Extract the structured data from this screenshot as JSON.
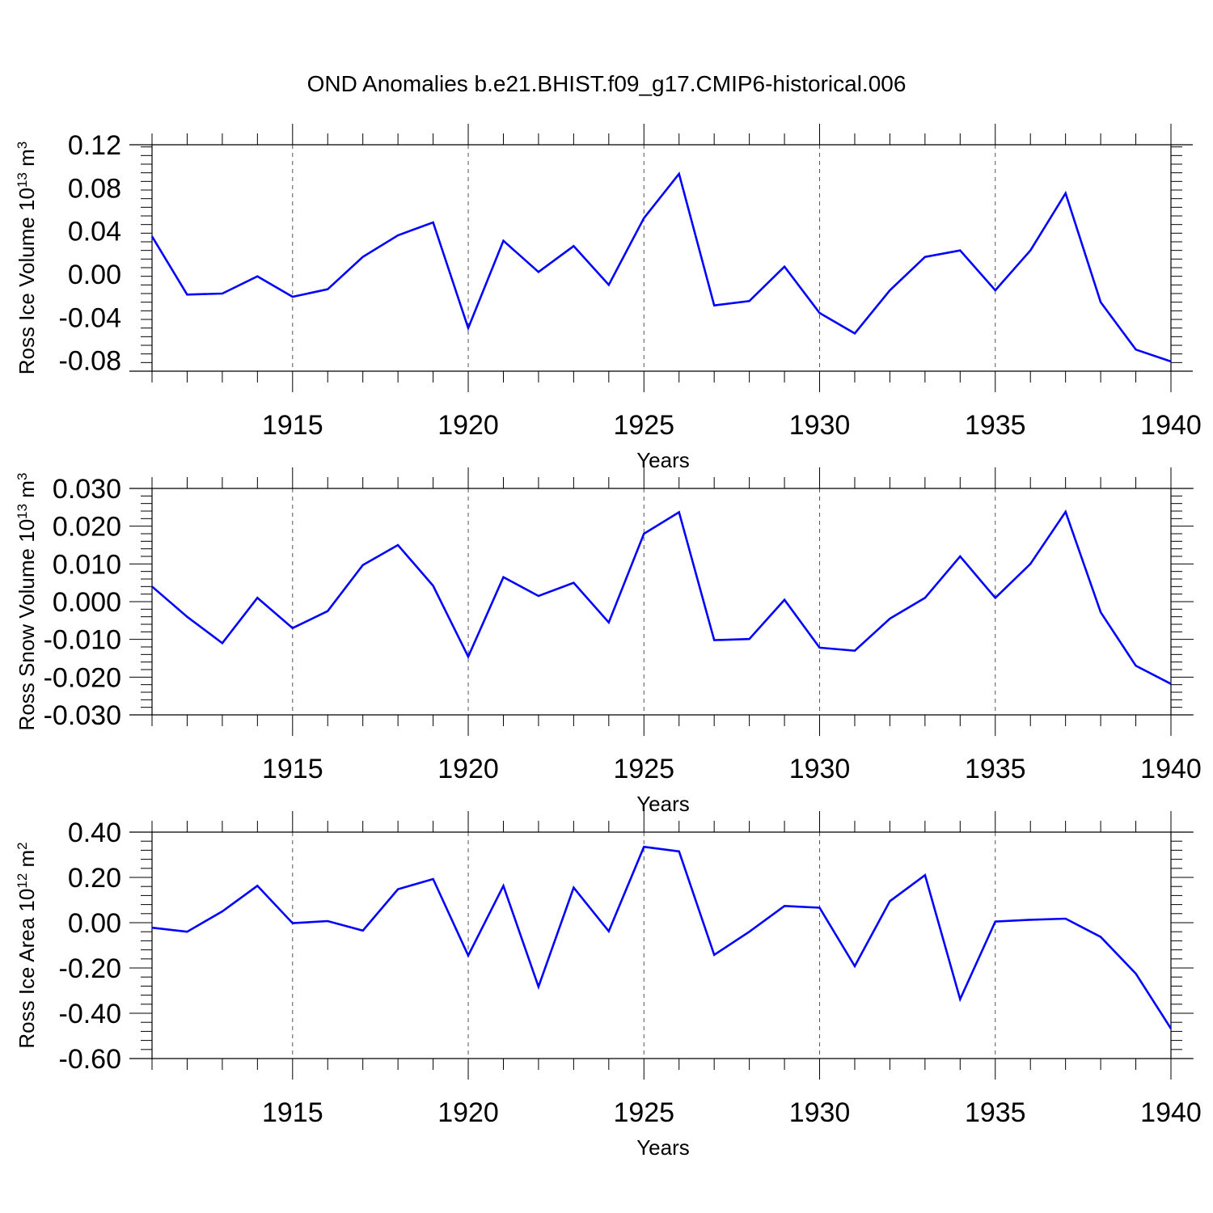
{
  "title": "OND Anomalies b.e21.BHIST.f09_g17.CMIP6-historical.006",
  "colors": {
    "line": "#0000ff",
    "axis": "#000000",
    "gridline": "#555555"
  },
  "chart_data": [
    {
      "type": "line",
      "ylabel": "Ross Ice Volume 10",
      "ylabel_exp": "13",
      "ylabel_unit": " m",
      "ylabel_unit_exp": "3",
      "xlabel": "Years",
      "xlim": [
        1911,
        1940
      ],
      "ylim": [
        -0.09,
        0.12
      ],
      "yticks": [
        0.12,
        0.08,
        0.04,
        0.0,
        -0.04,
        -0.08
      ],
      "ytick_labels": [
        "0.12",
        "0.08",
        "0.04",
        "0.00",
        "-0.04",
        "-0.08"
      ],
      "xticks": [
        1915,
        1920,
        1925,
        1930,
        1935,
        1940
      ],
      "xtick_labels": [
        "1915",
        "1920",
        "1925",
        "1930",
        "1935",
        "1940"
      ],
      "grid": "vertical dashed at labeled years",
      "x": [
        1911,
        1912,
        1913,
        1914,
        1915,
        1916,
        1917,
        1918,
        1919,
        1920,
        1921,
        1922,
        1923,
        1924,
        1925,
        1926,
        1927,
        1928,
        1929,
        1930,
        1931,
        1932,
        1933,
        1934,
        1935,
        1936,
        1937,
        1938,
        1939,
        1940
      ],
      "series": [
        {
          "values": [
            0.035,
            -0.019,
            -0.018,
            -0.002,
            -0.021,
            -0.014,
            0.016,
            0.036,
            0.048,
            -0.05,
            0.031,
            0.002,
            0.026,
            -0.01,
            0.052,
            0.093,
            -0.029,
            -0.025,
            0.007,
            -0.036,
            -0.055,
            -0.015,
            0.016,
            0.022,
            -0.015,
            0.022,
            0.075,
            -0.026,
            -0.07,
            -0.081
          ]
        }
      ]
    },
    {
      "type": "line",
      "ylabel": "Ross Snow Volume 10",
      "ylabel_exp": "13",
      "ylabel_unit": " m",
      "ylabel_unit_exp": "3",
      "xlabel": "Years",
      "xlim": [
        1911,
        1940
      ],
      "ylim": [
        -0.03,
        0.03
      ],
      "yticks": [
        0.03,
        0.02,
        0.01,
        0.0,
        -0.01,
        -0.02,
        -0.03
      ],
      "ytick_labels": [
        "0.030",
        "0.020",
        "0.010",
        "0.000",
        "-0.010",
        "-0.020",
        "-0.030"
      ],
      "xticks": [
        1915,
        1920,
        1925,
        1930,
        1935,
        1940
      ],
      "xtick_labels": [
        "1915",
        "1920",
        "1925",
        "1930",
        "1935",
        "1940"
      ],
      "grid": "vertical dashed at labeled years",
      "x": [
        1911,
        1912,
        1913,
        1914,
        1915,
        1916,
        1917,
        1918,
        1919,
        1920,
        1921,
        1922,
        1923,
        1924,
        1925,
        1926,
        1927,
        1928,
        1929,
        1930,
        1931,
        1932,
        1933,
        1934,
        1935,
        1936,
        1937,
        1938,
        1939,
        1940
      ],
      "series": [
        {
          "values": [
            0.004,
            -0.004,
            -0.011,
            0.001,
            -0.007,
            -0.0025,
            0.0097,
            0.015,
            0.0042,
            -0.0146,
            0.0065,
            0.0015,
            0.005,
            -0.0055,
            0.018,
            0.0237,
            -0.0102,
            -0.0099,
            0.0005,
            -0.0122,
            -0.013,
            -0.0045,
            0.001,
            0.012,
            0.001,
            0.01,
            0.0238,
            -0.0028,
            -0.017,
            -0.0218
          ]
        }
      ]
    },
    {
      "type": "line",
      "ylabel": "Ross Ice Area 10",
      "ylabel_exp": "12",
      "ylabel_unit": " m",
      "ylabel_unit_exp": "2",
      "xlabel": "Years",
      "xlim": [
        1911,
        1940
      ],
      "ylim": [
        -0.6,
        0.4
      ],
      "yticks": [
        0.4,
        0.2,
        0.0,
        -0.2,
        -0.4,
        -0.6
      ],
      "ytick_labels": [
        "0.40",
        "0.20",
        "0.00",
        "-0.20",
        "-0.40",
        "-0.60"
      ],
      "xticks": [
        1915,
        1920,
        1925,
        1930,
        1935,
        1940
      ],
      "xtick_labels": [
        "1915",
        "1920",
        "1925",
        "1930",
        "1935",
        "1940"
      ],
      "grid": "vertical dashed at labeled years",
      "x": [
        1911,
        1912,
        1913,
        1914,
        1915,
        1916,
        1917,
        1918,
        1919,
        1920,
        1921,
        1922,
        1923,
        1924,
        1925,
        1926,
        1927,
        1928,
        1929,
        1930,
        1931,
        1932,
        1933,
        1934,
        1935,
        1936,
        1937,
        1938,
        1939,
        1940
      ],
      "series": [
        {
          "values": [
            -0.022,
            -0.04,
            0.05,
            0.163,
            -0.002,
            0.007,
            -0.035,
            0.148,
            0.193,
            -0.145,
            0.163,
            -0.283,
            0.155,
            -0.038,
            0.335,
            0.315,
            -0.142,
            -0.04,
            0.074,
            0.066,
            -0.192,
            0.095,
            0.21,
            -0.338,
            0.005,
            0.013,
            0.018,
            -0.063,
            -0.225,
            -0.468
          ]
        }
      ]
    }
  ]
}
